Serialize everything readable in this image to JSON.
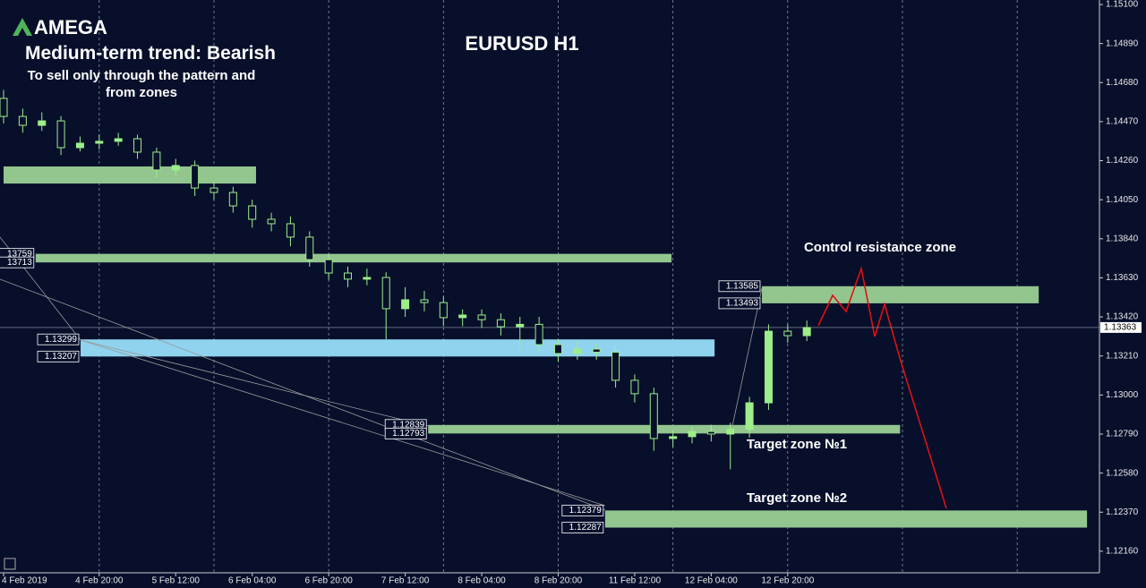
{
  "chart_data": {
    "type": "candlestick",
    "brand": "AMEGA",
    "title": "EURUSD H1",
    "trend": "Medium-term trend: Bearish",
    "note": [
      "To sell only through the pattern and",
      "from zones"
    ],
    "xlim": [
      -0.75,
      229.2
    ],
    "ylim": [
      1.12044,
      1.15124
    ],
    "xticks": [
      {
        "value": 0,
        "label": "4 Feb 2019"
      },
      {
        "value": 20,
        "label": "4 Feb 20:00"
      },
      {
        "value": 36,
        "label": "5 Feb 12:00"
      },
      {
        "value": 52,
        "label": "6 Feb 04:00"
      },
      {
        "value": 68,
        "label": "6 Feb 20:00"
      },
      {
        "value": 84,
        "label": "7 Feb 12:00"
      },
      {
        "value": 100,
        "label": "8 Feb 04:00"
      },
      {
        "value": 116,
        "label": "8 Feb 20:00"
      },
      {
        "value": 132,
        "label": "11 Feb 12:00"
      },
      {
        "value": 148,
        "label": "12 Feb 04:00"
      },
      {
        "value": 164,
        "label": "12 Feb 20:00"
      }
    ],
    "yticks": [
      {
        "value": 1.151,
        "label": "1.15100"
      },
      {
        "value": 1.1489,
        "label": "1.14890"
      },
      {
        "value": 1.1468,
        "label": "1.14680"
      },
      {
        "value": 1.1447,
        "label": "1.14470"
      },
      {
        "value": 1.1426,
        "label": "1.14260"
      },
      {
        "value": 1.1405,
        "label": "1.14050"
      },
      {
        "value": 1.1384,
        "label": "1.13840"
      },
      {
        "value": 1.1363,
        "label": "1.13630"
      },
      {
        "value": 1.1342,
        "label": "1.13420"
      },
      {
        "value": 1.1321,
        "label": "1.13210"
      },
      {
        "value": 1.13,
        "label": "1.13000"
      },
      {
        "value": 1.1279,
        "label": "1.12790"
      },
      {
        "value": 1.1258,
        "label": "1.12580"
      },
      {
        "value": 1.1237,
        "label": "1.12370"
      },
      {
        "value": 1.1216,
        "label": "1.12160"
      }
    ],
    "current_price": {
      "value": 1.13363,
      "label": "1.13363"
    },
    "x": [
      0,
      4,
      8,
      12,
      16,
      20,
      24,
      28,
      32,
      36,
      40,
      44,
      48,
      52,
      56,
      60,
      64,
      68,
      72,
      76,
      80,
      84,
      88,
      92,
      96,
      100,
      104,
      108,
      112,
      116,
      120,
      124,
      128,
      132,
      136,
      140,
      144,
      148,
      152,
      156,
      160,
      164,
      168
    ],
    "open": [
      1.14595,
      1.14498,
      1.1445,
      1.14474,
      1.1433,
      1.14354,
      1.14364,
      1.14378,
      1.14306,
      1.1421,
      1.14234,
      1.14113,
      1.14089,
      1.14017,
      1.13945,
      1.13921,
      1.13849,
      1.13728,
      1.13656,
      1.13623,
      1.13632,
      1.13464,
      1.13512,
      1.13497,
      1.13416,
      1.1343,
      1.13405,
      1.13367,
      1.1338,
      1.13271,
      1.13223,
      1.13247,
      1.1323,
      1.13079,
      1.13007,
      1.12766,
      1.12776,
      1.12804,
      1.1279,
      1.12815,
      1.12958,
      1.13343,
      1.13319
    ],
    "high": [
      1.1464,
      1.1454,
      1.1452,
      1.145,
      1.1439,
      1.144,
      1.1441,
      1.144,
      1.1433,
      1.1427,
      1.1426,
      1.1415,
      1.1412,
      1.1405,
      1.1398,
      1.1396,
      1.1388,
      1.1376,
      1.1369,
      1.1368,
      1.1366,
      1.1358,
      1.1356,
      1.1353,
      1.1346,
      1.1346,
      1.1344,
      1.1342,
      1.1342,
      1.133,
      1.1329,
      1.1328,
      1.1326,
      1.1311,
      1.1304,
      1.1281,
      1.1283,
      1.1284,
      1.1285,
      1.1299,
      1.1338,
      1.1338,
      1.134
    ],
    "low": [
      1.1446,
      1.1441,
      1.1442,
      1.1429,
      1.1431,
      1.1432,
      1.1434,
      1.1427,
      1.1417,
      1.1418,
      1.1407,
      1.1405,
      1.1398,
      1.139,
      1.1388,
      1.138,
      1.1369,
      1.1362,
      1.1358,
      1.1359,
      1.133,
      1.1342,
      1.1345,
      1.1337,
      1.1337,
      1.1336,
      1.1332,
      1.1324,
      1.1323,
      1.1318,
      1.1319,
      1.1319,
      1.1304,
      1.1296,
      1.127,
      1.1272,
      1.1274,
      1.1275,
      1.126,
      1.1277,
      1.1292,
      1.1328,
      1.1329
    ],
    "close": [
      1.14498,
      1.1445,
      1.14474,
      1.1433,
      1.14354,
      1.14364,
      1.14378,
      1.14306,
      1.1421,
      1.14234,
      1.14113,
      1.14089,
      1.14017,
      1.13945,
      1.13921,
      1.13849,
      1.13728,
      1.13656,
      1.13623,
      1.13632,
      1.13464,
      1.13512,
      1.13497,
      1.13416,
      1.1343,
      1.13405,
      1.13367,
      1.1338,
      1.13271,
      1.13223,
      1.13247,
      1.1323,
      1.13079,
      1.13007,
      1.12766,
      1.12776,
      1.12804,
      1.1279,
      1.12815,
      1.12958,
      1.13343,
      1.13319,
      1.13363
    ],
    "zones": [
      {
        "start": 0,
        "end": 52.8,
        "top": 1.14229,
        "bottom": 1.14137,
        "color": "#93c58f"
      },
      {
        "start": 6.7,
        "end": 139.7,
        "top": 1.13759,
        "bottom": 1.13713,
        "top_label": "13759",
        "bottom_label": "13713",
        "color": "#93c58f"
      },
      {
        "start": 16.1,
        "end": 148.7,
        "top": 1.13299,
        "bottom": 1.13207,
        "top_label": "1.13299",
        "bottom_label": "1.13207",
        "color": "#8fd3ee"
      },
      {
        "start": 88.8,
        "end": 187.5,
        "top": 1.12839,
        "bottom": 1.12793,
        "top_label": "1.12839",
        "bottom_label": "1.12793",
        "color": "#93c58f"
      },
      {
        "start": 125.8,
        "end": 226.6,
        "top": 1.12379,
        "bottom": 1.12287,
        "top_label": "1.12379",
        "bottom_label": "1.12287",
        "color": "#93c58f"
      },
      {
        "start": 158.6,
        "end": 216.5,
        "top": 1.13585,
        "bottom": 1.13493,
        "top_label": "1.13585",
        "bottom_label": "1.13493",
        "color": "#93c58f"
      }
    ],
    "annotations": [
      "Control resistance zone",
      "Target zone №1",
      "Target zone №2"
    ]
  }
}
